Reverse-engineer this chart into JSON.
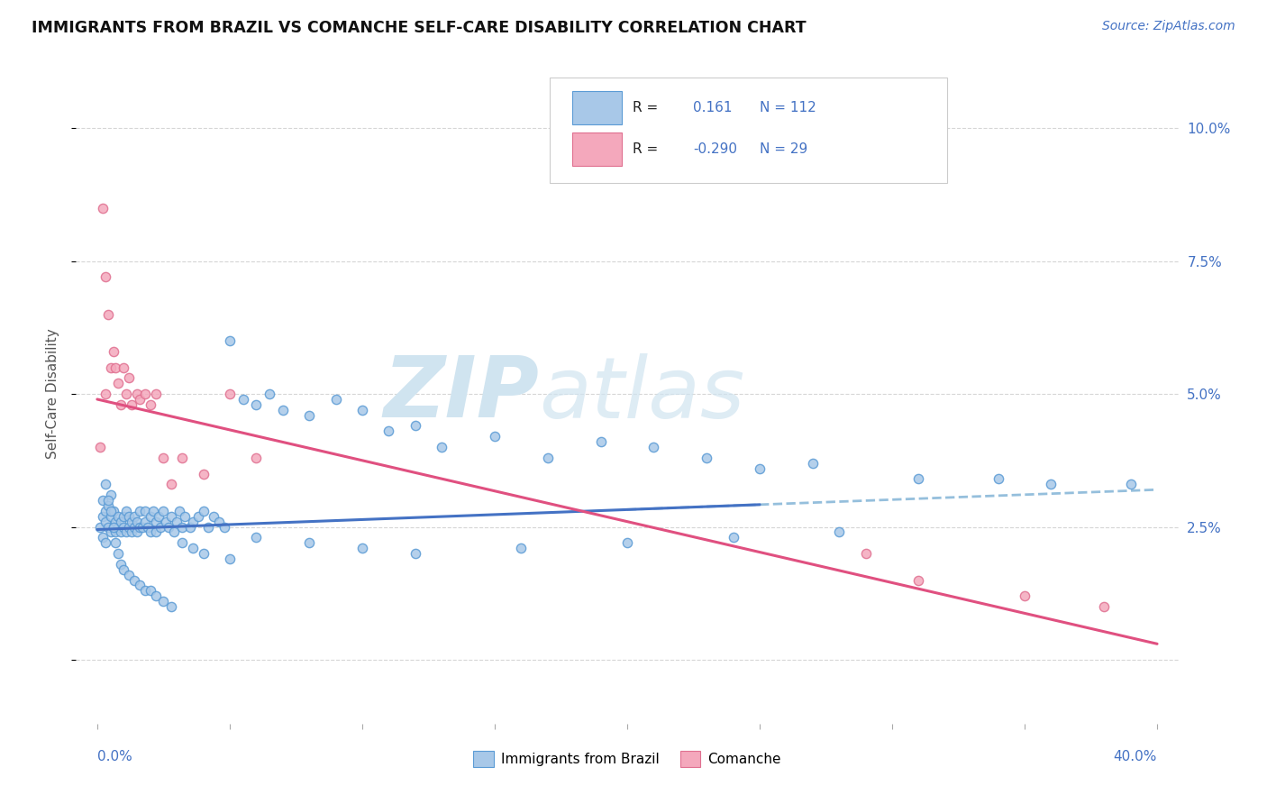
{
  "title": "IMMIGRANTS FROM BRAZIL VS COMANCHE SELF-CARE DISABILITY CORRELATION CHART",
  "source": "Source: ZipAtlas.com",
  "ylabel": "Self-Care Disability",
  "xlim": [
    0.0,
    0.4
  ],
  "ylim": [
    -0.012,
    0.112
  ],
  "right_yticks": [
    0.025,
    0.05,
    0.075,
    0.1
  ],
  "right_ytick_labels": [
    "2.5%",
    "5.0%",
    "7.5%",
    "10.0%"
  ],
  "blue_color": "#A8C8E8",
  "pink_color": "#F4A8BC",
  "blue_edge_color": "#5B9BD5",
  "pink_edge_color": "#E07090",
  "blue_line_color": "#4472C4",
  "pink_line_color": "#E05080",
  "dashed_line_color": "#7BAFD4",
  "watermark_color": "#D0E4F0",
  "brazil_x": [
    0.001,
    0.002,
    0.002,
    0.002,
    0.003,
    0.003,
    0.003,
    0.004,
    0.004,
    0.005,
    0.005,
    0.005,
    0.006,
    0.006,
    0.007,
    0.007,
    0.008,
    0.008,
    0.009,
    0.009,
    0.01,
    0.01,
    0.011,
    0.011,
    0.012,
    0.012,
    0.013,
    0.013,
    0.014,
    0.014,
    0.015,
    0.015,
    0.016,
    0.016,
    0.017,
    0.018,
    0.018,
    0.019,
    0.02,
    0.02,
    0.021,
    0.022,
    0.022,
    0.023,
    0.024,
    0.025,
    0.026,
    0.027,
    0.028,
    0.029,
    0.03,
    0.031,
    0.032,
    0.033,
    0.035,
    0.036,
    0.038,
    0.04,
    0.042,
    0.044,
    0.046,
    0.048,
    0.05,
    0.055,
    0.06,
    0.065,
    0.07,
    0.08,
    0.09,
    0.1,
    0.11,
    0.12,
    0.13,
    0.15,
    0.17,
    0.19,
    0.21,
    0.23,
    0.25,
    0.27,
    0.003,
    0.004,
    0.005,
    0.006,
    0.007,
    0.008,
    0.009,
    0.01,
    0.012,
    0.014,
    0.016,
    0.018,
    0.02,
    0.022,
    0.025,
    0.028,
    0.032,
    0.036,
    0.04,
    0.05,
    0.06,
    0.08,
    0.1,
    0.12,
    0.16,
    0.2,
    0.24,
    0.28,
    0.31,
    0.34,
    0.36,
    0.39
  ],
  "brazil_y": [
    0.025,
    0.027,
    0.023,
    0.03,
    0.026,
    0.028,
    0.022,
    0.025,
    0.029,
    0.024,
    0.027,
    0.031,
    0.025,
    0.028,
    0.024,
    0.026,
    0.025,
    0.027,
    0.024,
    0.026,
    0.025,
    0.027,
    0.024,
    0.028,
    0.025,
    0.027,
    0.026,
    0.024,
    0.025,
    0.027,
    0.026,
    0.024,
    0.025,
    0.028,
    0.025,
    0.026,
    0.028,
    0.025,
    0.027,
    0.024,
    0.028,
    0.026,
    0.024,
    0.027,
    0.025,
    0.028,
    0.026,
    0.025,
    0.027,
    0.024,
    0.026,
    0.028,
    0.025,
    0.027,
    0.025,
    0.026,
    0.027,
    0.028,
    0.025,
    0.027,
    0.026,
    0.025,
    0.06,
    0.049,
    0.048,
    0.05,
    0.047,
    0.046,
    0.049,
    0.047,
    0.043,
    0.044,
    0.04,
    0.042,
    0.038,
    0.041,
    0.04,
    0.038,
    0.036,
    0.037,
    0.033,
    0.03,
    0.028,
    0.025,
    0.022,
    0.02,
    0.018,
    0.017,
    0.016,
    0.015,
    0.014,
    0.013,
    0.013,
    0.012,
    0.011,
    0.01,
    0.022,
    0.021,
    0.02,
    0.019,
    0.023,
    0.022,
    0.021,
    0.02,
    0.021,
    0.022,
    0.023,
    0.024,
    0.034,
    0.034,
    0.033,
    0.033
  ],
  "comanche_x": [
    0.001,
    0.002,
    0.003,
    0.003,
    0.004,
    0.005,
    0.006,
    0.007,
    0.008,
    0.009,
    0.01,
    0.011,
    0.012,
    0.013,
    0.015,
    0.016,
    0.018,
    0.02,
    0.022,
    0.025,
    0.028,
    0.032,
    0.04,
    0.05,
    0.06,
    0.29,
    0.31,
    0.35,
    0.38
  ],
  "comanche_y": [
    0.04,
    0.085,
    0.072,
    0.05,
    0.065,
    0.055,
    0.058,
    0.055,
    0.052,
    0.048,
    0.055,
    0.05,
    0.053,
    0.048,
    0.05,
    0.049,
    0.05,
    0.048,
    0.05,
    0.038,
    0.033,
    0.038,
    0.035,
    0.05,
    0.038,
    0.02,
    0.015,
    0.012,
    0.01
  ],
  "brazil_trend": [
    0.0245,
    0.032
  ],
  "pink_trend": [
    0.049,
    0.003
  ],
  "dashed_trend_start_x": 0.2,
  "dashed_trend": [
    0.03,
    0.04
  ]
}
